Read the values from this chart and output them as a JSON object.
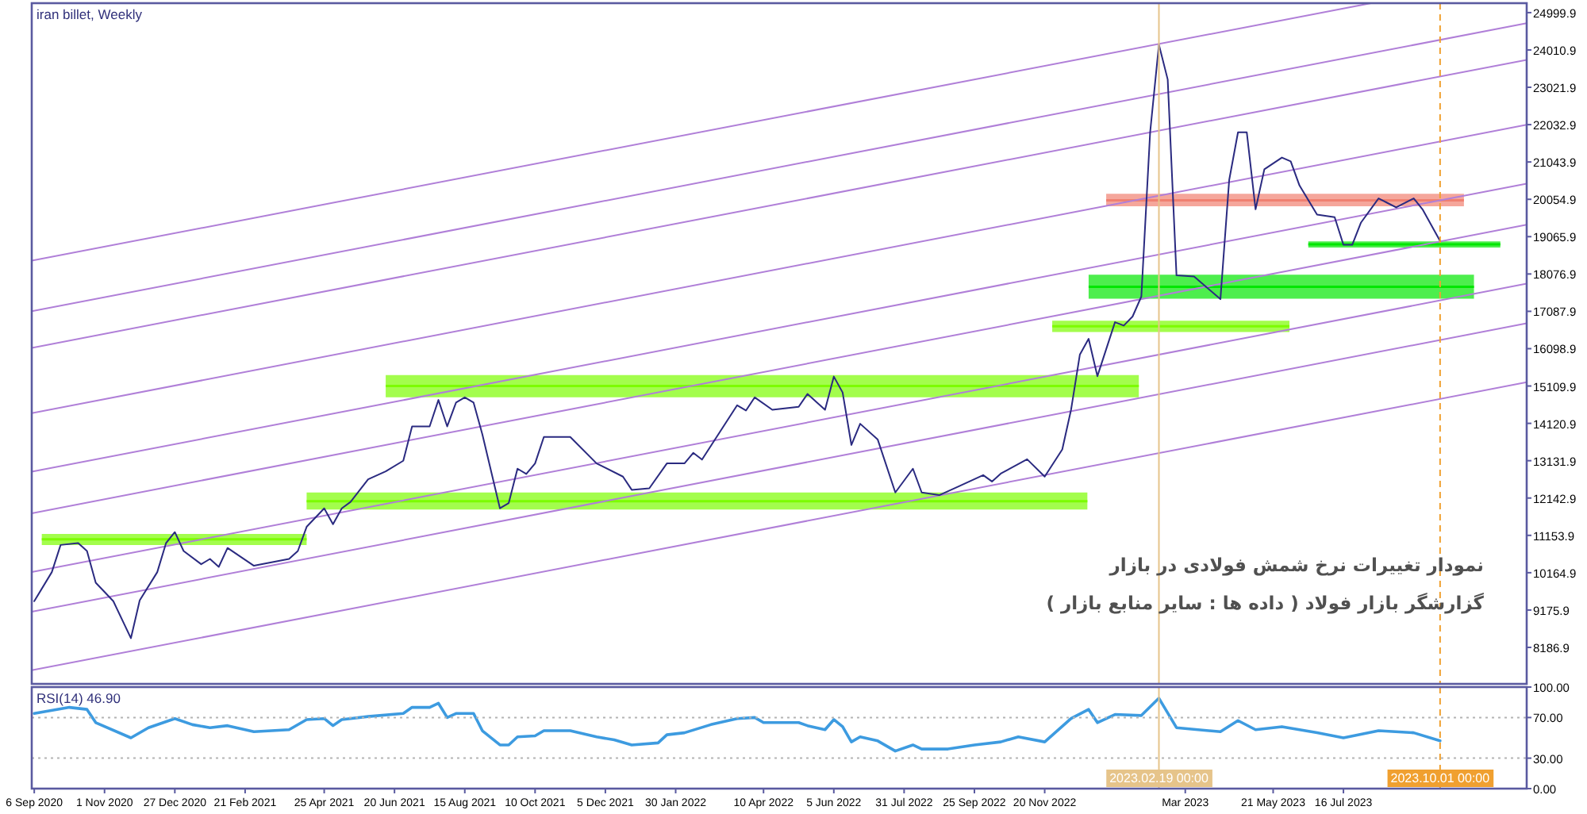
{
  "chart_data": [
    {
      "type": "line",
      "title": "iran billet, Weekly",
      "annotations": [
        "نمودار تغییرات نرخ شمش فولادی در بازار",
        "گزارشگر بازار فولاد ( داده ها : سایر منابع بازار )"
      ],
      "xlim": [
        "2020-09-04",
        "2023-12-09"
      ],
      "ylim": [
        7220,
        25250
      ],
      "yticks": [
        8186.9,
        9175.9,
        10164.9,
        11153.9,
        12142.9,
        13131.9,
        14120.9,
        15109.9,
        16098.9,
        17087.9,
        18076.9,
        19065.9,
        20054.9,
        21043.9,
        22032.9,
        23021.9,
        24010.9,
        24999.9
      ],
      "tick_labels": "y",
      "ref_lines": [
        {
          "axis": "x",
          "value": "2023-02-19",
          "color": "#e6c48a",
          "line_style": "solid"
        },
        {
          "axis": "x",
          "value": "2023-10-01",
          "color": "#f0a030",
          "line_style": "dashed"
        }
      ],
      "series": [
        {
          "color": "#7cfc00",
          "x": [
            "2020-09-12",
            "2021-04-11"
          ],
          "values": [
            11050,
            11050
          ],
          "lower": [
            10900,
            10900
          ],
          "upper": [
            11190,
            11190
          ]
        },
        {
          "color": "#7cfc00",
          "x": [
            "2021-04-11",
            "2022-12-24"
          ],
          "values": [
            12060,
            12060
          ],
          "lower": [
            11840,
            11840
          ],
          "upper": [
            12290,
            12290
          ]
        },
        {
          "color": "#7cfc00",
          "x": [
            "2021-06-13",
            "2023-02-03"
          ],
          "values": [
            15110,
            15110
          ],
          "lower": [
            14810,
            14810
          ],
          "upper": [
            15400,
            15400
          ]
        },
        {
          "color": "#7cfc00",
          "x": [
            "2022-11-26",
            "2023-06-03"
          ],
          "values": [
            16690,
            16690
          ],
          "lower": [
            16540,
            16540
          ],
          "upper": [
            16840,
            16840
          ]
        },
        {
          "color": "#00e600",
          "x": [
            "2022-12-25",
            "2023-10-28"
          ],
          "values": [
            17740,
            17740
          ],
          "lower": [
            17420,
            17420
          ],
          "upper": [
            18060,
            18060
          ]
        },
        {
          "color": "#00e600",
          "x": [
            "2023-06-18",
            "2023-11-18"
          ],
          "values": [
            18860,
            18860
          ],
          "lower": [
            18780,
            18780
          ],
          "upper": [
            18940,
            18940
          ]
        },
        {
          "color": "#f08070",
          "x": [
            "2023-01-08",
            "2023-10-20"
          ],
          "values": [
            20030,
            20030
          ],
          "lower": [
            19870,
            19870
          ],
          "upper": [
            20200,
            20200
          ]
        },
        {
          "color": "#b07fd8",
          "x": [
            "2020-09-04",
            "2023-08-07"
          ],
          "values": [
            18430,
            25250
          ]
        },
        {
          "color": "#b07fd8",
          "x": [
            "2020-09-04",
            "2023-12-09"
          ],
          "values": [
            17090,
            24720
          ]
        },
        {
          "color": "#b07fd8",
          "x": [
            "2020-09-04",
            "2023-12-09"
          ],
          "values": [
            16120,
            23750
          ]
        },
        {
          "color": "#b07fd8",
          "x": [
            "2020-09-04",
            "2023-12-09"
          ],
          "values": [
            14390,
            22030
          ]
        },
        {
          "color": "#b07fd8",
          "x": [
            "2020-09-04",
            "2023-12-09"
          ],
          "values": [
            12840,
            20470
          ]
        },
        {
          "color": "#b07fd8",
          "x": [
            "2020-09-04",
            "2023-12-09"
          ],
          "values": [
            11740,
            19380
          ]
        },
        {
          "color": "#b07fd8",
          "x": [
            "2020-09-04",
            "2023-12-09"
          ],
          "values": [
            10180,
            17820
          ]
        },
        {
          "color": "#b07fd8",
          "x": [
            "2020-09-04",
            "2023-12-09"
          ],
          "values": [
            9130,
            16770
          ]
        },
        {
          "color": "#b07fd8",
          "x": [
            "2020-09-04",
            "2023-12-09"
          ],
          "values": [
            7580,
            15210
          ]
        },
        {
          "color": "#2a2a80",
          "x": [
            "2020-09-06",
            "2020-09-20",
            "2020-09-27",
            "2020-10-11",
            "2020-10-18",
            "2020-10-25",
            "2020-11-08",
            "2020-11-22",
            "2020-11-29",
            "2020-12-13",
            "2020-12-20",
            "2020-12-27",
            "2021-01-03",
            "2021-01-17",
            "2021-01-24",
            "2021-01-31",
            "2021-02-07",
            "2021-02-28",
            "2021-03-28",
            "2021-04-04",
            "2021-04-11",
            "2021-04-25",
            "2021-05-02",
            "2021-05-09",
            "2021-05-16",
            "2021-05-30",
            "2021-06-13",
            "2021-06-27",
            "2021-07-04",
            "2021-07-18",
            "2021-07-25",
            "2021-08-01",
            "2021-08-08",
            "2021-08-15",
            "2021-08-22",
            "2021-08-29",
            "2021-09-12",
            "2021-09-19",
            "2021-09-26",
            "2021-10-03",
            "2021-10-10",
            "2021-10-17",
            "2021-11-07",
            "2021-11-28",
            "2021-12-19",
            "2021-12-26",
            "2022-01-09",
            "2022-01-23",
            "2022-02-06",
            "2022-02-13",
            "2022-02-20",
            "2022-03-20",
            "2022-03-27",
            "2022-04-03",
            "2022-04-17",
            "2022-05-08",
            "2022-05-15",
            "2022-05-29",
            "2022-06-05",
            "2022-06-12",
            "2022-06-19",
            "2022-06-26",
            "2022-07-10",
            "2022-07-24",
            "2022-08-07",
            "2022-08-14",
            "2022-08-28",
            "2022-09-11",
            "2022-10-02",
            "2022-10-09",
            "2022-10-16",
            "2022-11-06",
            "2022-11-20",
            "2022-12-04",
            "2022-12-11",
            "2022-12-18",
            "2022-12-25",
            "2023-01-01",
            "2023-01-15",
            "2023-01-22",
            "2023-01-29",
            "2023-02-05",
            "2023-02-12",
            "2023-02-19",
            "2023-02-26",
            "2023-03-05",
            "2023-03-19",
            "2023-04-09",
            "2023-04-16",
            "2023-04-23",
            "2023-04-30",
            "2023-05-07",
            "2023-05-14",
            "2023-05-28",
            "2023-06-04",
            "2023-06-11",
            "2023-06-25",
            "2023-07-09",
            "2023-07-16",
            "2023-07-23",
            "2023-07-30",
            "2023-08-13",
            "2023-08-20",
            "2023-08-27",
            "2023-09-10",
            "2023-09-17",
            "2023-10-01"
          ],
          "values": [
            9410,
            10180,
            10900,
            10950,
            10740,
            9900,
            9410,
            8430,
            9430,
            10180,
            10950,
            11240,
            10740,
            10390,
            10530,
            10320,
            10820,
            10350,
            10530,
            10740,
            11380,
            11870,
            11450,
            11870,
            12040,
            12640,
            12850,
            13130,
            14040,
            14040,
            14740,
            14040,
            14670,
            14810,
            14670,
            13830,
            11870,
            12010,
            12920,
            12780,
            13060,
            13760,
            13760,
            13060,
            12710,
            12360,
            12400,
            13060,
            13060,
            13340,
            13160,
            14600,
            14460,
            14810,
            14480,
            14560,
            14900,
            14480,
            15360,
            14940,
            13550,
            14110,
            13690,
            12290,
            12920,
            12290,
            12220,
            12430,
            12750,
            12580,
            12790,
            13170,
            12710,
            13430,
            14480,
            15940,
            16360,
            15370,
            16800,
            16710,
            16950,
            17480,
            21830,
            24150,
            23230,
            18040,
            18010,
            17410,
            20570,
            21830,
            21830,
            19790,
            20850,
            21160,
            21060,
            20420,
            19650,
            19580,
            18850,
            18850,
            19440,
            20080,
            19960,
            19840,
            20080,
            19790,
            18950
          ]
        }
      ]
    },
    {
      "type": "line",
      "title": "RSI(14) 46.90",
      "xlim": [
        "2020-09-04",
        "2023-12-09"
      ],
      "ylim": [
        0,
        100
      ],
      "xticks": [
        {
          "value": "2020-09-06",
          "label": "6 Sep 2020"
        },
        {
          "value": "2020-11-01",
          "label": "1 Nov 2020"
        },
        {
          "value": "2020-12-27",
          "label": "27 Dec 2020"
        },
        {
          "value": "2021-02-21",
          "label": "21 Feb 2021"
        },
        {
          "value": "2021-04-25",
          "label": "25 Apr 2021"
        },
        {
          "value": "2021-06-20",
          "label": "20 Jun 2021"
        },
        {
          "value": "2021-08-15",
          "label": "15 Aug 2021"
        },
        {
          "value": "2021-10-10",
          "label": "10 Oct 2021"
        },
        {
          "value": "2021-12-05",
          "label": "5 Dec 2021"
        },
        {
          "value": "2022-01-30",
          "label": "30 Jan 2022"
        },
        {
          "value": "2022-04-10",
          "label": "10 Apr 2022"
        },
        {
          "value": "2022-06-05",
          "label": "5 Jun 2022"
        },
        {
          "value": "2022-07-31",
          "label": "31 Jul 2022"
        },
        {
          "value": "2022-09-25",
          "label": "25 Sep 2022"
        },
        {
          "value": "2022-11-20",
          "label": "20 Nov 2022"
        },
        {
          "value": "2023-03-12",
          "label": "Mar 2023"
        },
        {
          "value": "2023-05-21",
          "label": "21 May 2023"
        },
        {
          "value": "2023-07-16",
          "label": "16 Jul 2023"
        }
      ],
      "yticks": [
        {
          "value": 0,
          "label": "0.00"
        },
        {
          "value": 30,
          "label": "30.00"
        },
        {
          "value": 70,
          "label": "70.00"
        },
        {
          "value": 100,
          "label": "100.00"
        }
      ],
      "ref_lines": [
        {
          "axis": "x",
          "value": "2023-02-19",
          "label": "2023.02.19 00:00",
          "color": "#e6c48a",
          "line_style": "solid"
        },
        {
          "axis": "x",
          "value": "2023-10-01",
          "label": "2023.10.01 00:00",
          "color": "#f0a030",
          "line_style": "dashed"
        },
        {
          "axis": "y",
          "value": 70,
          "color": "#b4b4b4",
          "line_style": "dotted"
        },
        {
          "axis": "y",
          "value": 30,
          "color": "#b4b4b4",
          "line_style": "dotted"
        }
      ],
      "series": [
        {
          "color": "#3d9be0",
          "x": [
            "2020-09-06",
            "2020-10-04",
            "2020-10-18",
            "2020-10-25",
            "2020-11-22",
            "2020-12-06",
            "2020-12-27",
            "2021-01-10",
            "2021-01-24",
            "2021-02-07",
            "2021-02-28",
            "2021-03-28",
            "2021-04-11",
            "2021-04-25",
            "2021-05-02",
            "2021-05-09",
            "2021-05-30",
            "2021-06-27",
            "2021-07-04",
            "2021-07-18",
            "2021-07-25",
            "2021-08-01",
            "2021-08-08",
            "2021-08-22",
            "2021-08-29",
            "2021-09-12",
            "2021-09-19",
            "2021-09-26",
            "2021-10-10",
            "2021-10-17",
            "2021-11-07",
            "2021-11-28",
            "2021-12-12",
            "2021-12-26",
            "2022-01-16",
            "2022-01-23",
            "2022-02-06",
            "2022-02-27",
            "2022-03-20",
            "2022-04-03",
            "2022-04-10",
            "2022-05-08",
            "2022-05-15",
            "2022-05-29",
            "2022-06-05",
            "2022-06-12",
            "2022-06-19",
            "2022-06-26",
            "2022-07-10",
            "2022-07-24",
            "2022-08-07",
            "2022-08-14",
            "2022-09-04",
            "2022-09-25",
            "2022-10-16",
            "2022-10-30",
            "2022-11-20",
            "2022-12-11",
            "2022-12-25",
            "2023-01-01",
            "2023-01-15",
            "2023-02-05",
            "2023-02-19",
            "2023-03-05",
            "2023-04-09",
            "2023-04-23",
            "2023-05-07",
            "2023-05-28",
            "2023-06-25",
            "2023-07-16",
            "2023-08-13",
            "2023-09-10",
            "2023-10-01"
          ],
          "values": [
            74,
            80,
            78,
            65,
            50,
            60,
            69,
            63,
            60,
            62,
            56,
            58,
            68,
            69,
            62,
            68,
            71,
            74,
            80,
            80,
            84,
            70,
            74,
            74,
            57,
            43,
            43,
            51,
            52,
            57,
            57,
            51,
            48,
            43,
            45,
            53,
            55,
            63,
            69,
            70,
            65,
            65,
            62,
            58,
            68,
            61,
            46,
            51,
            47,
            37,
            43,
            39,
            39,
            43,
            46,
            51,
            46,
            69,
            78,
            65,
            73,
            72,
            89,
            60,
            56,
            67,
            58,
            61,
            55,
            50,
            57,
            55,
            47
          ]
        }
      ]
    }
  ]
}
